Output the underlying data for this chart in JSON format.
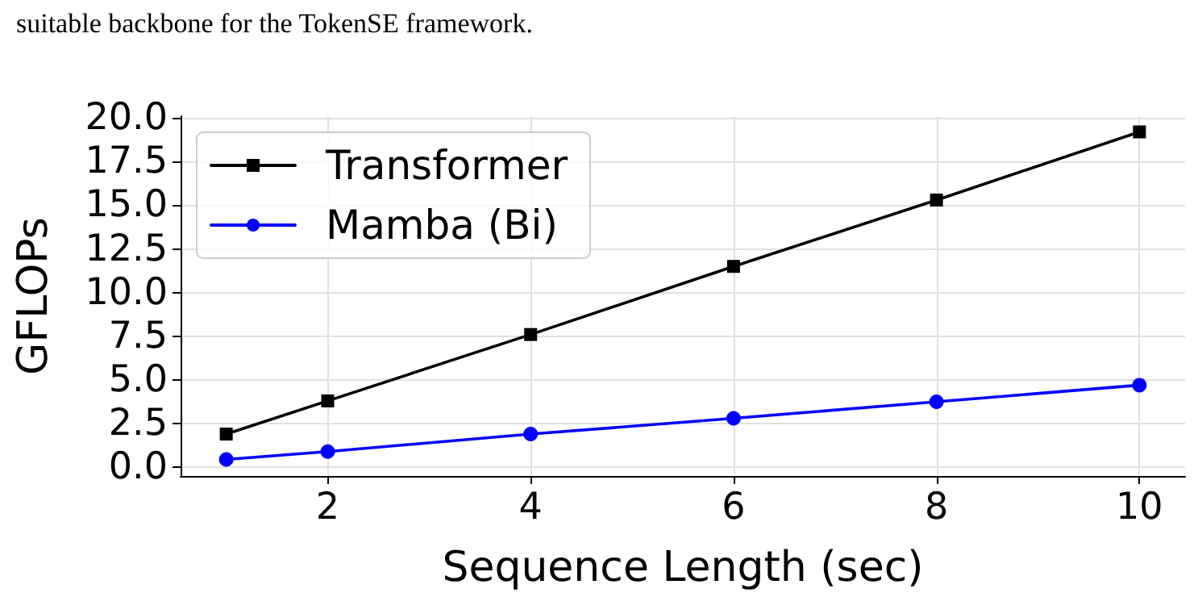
{
  "chart_data": {
    "type": "line",
    "annotations": [
      "suitable backbone for the TokenSE framework."
    ],
    "xlabel": "Sequence Length (sec)",
    "ylabel": "GFLOPs",
    "x": [
      1,
      2,
      4,
      6,
      8,
      10
    ],
    "series": [
      {
        "name": "Transformer",
        "color": "#000000",
        "marker": "square",
        "values": [
          1.9,
          3.8,
          7.6,
          11.5,
          15.3,
          19.2
        ]
      },
      {
        "name": "Mamba (Bi)",
        "color": "#0000ff",
        "marker": "circle",
        "values": [
          0.45,
          0.9,
          1.9,
          2.8,
          3.75,
          4.7
        ]
      }
    ],
    "xlim": [
      0.55,
      10.45
    ],
    "xticks": [
      2,
      4,
      6,
      8,
      10
    ],
    "ylim": [
      -0.5,
      20.1
    ],
    "yticks": [
      {
        "value": 0,
        "label": "0.0"
      },
      {
        "value": 2.5,
        "label": "2.5"
      },
      {
        "value": 5,
        "label": "5.0"
      },
      {
        "value": 7.5,
        "label": "7.5"
      },
      {
        "value": 10,
        "label": "10.0"
      },
      {
        "value": 12.5,
        "label": "12.5"
      },
      {
        "value": 15,
        "label": "15.0"
      },
      {
        "value": 17.5,
        "label": "17.5"
      },
      {
        "value": 20,
        "label": "20.0"
      }
    ],
    "grid": true,
    "legend": "top left",
    "line_style": "solid"
  }
}
